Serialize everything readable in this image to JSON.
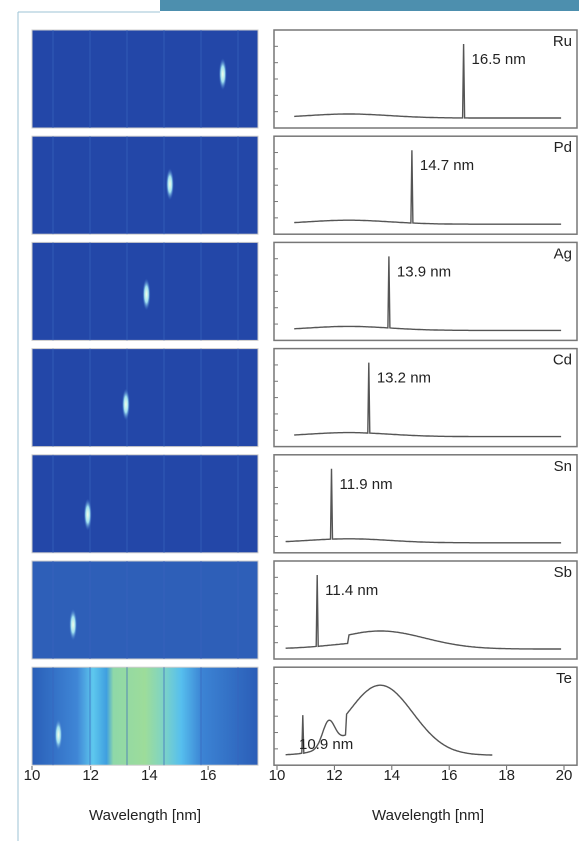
{
  "chart_data": [
    {
      "type": "spectral-image",
      "xlabel": "Wavelength [nm]",
      "xlim": [
        10,
        17.7
      ],
      "xticks": [
        10,
        12,
        14,
        16
      ],
      "values": [
        16.5,
        14.7,
        13.9,
        13.2,
        11.9,
        11.4,
        10.9
      ]
    },
    {
      "type": "spectrum",
      "xlabel": "Wavelength [nm]",
      "xlim": [
        10,
        20
      ],
      "xticks": [
        10,
        12,
        14,
        16,
        18,
        20
      ],
      "series": [
        {
          "name": "Ru",
          "value": 16.5,
          "value_label": "16.5 nm"
        },
        {
          "name": "Pd",
          "value": 14.7,
          "value_label": "14.7 nm"
        },
        {
          "name": "Ag",
          "value": 13.9,
          "value_label": "13.9 nm"
        },
        {
          "name": "Cd",
          "value": 13.2,
          "value_label": "13.2 nm"
        },
        {
          "name": "Sn",
          "value": 11.9,
          "value_label": "11.9 nm"
        },
        {
          "name": "Sb",
          "value": 11.4,
          "value_label": "11.4 nm"
        },
        {
          "name": "Te",
          "value": 10.9,
          "value_label": "10.9 nm"
        }
      ]
    }
  ]
}
